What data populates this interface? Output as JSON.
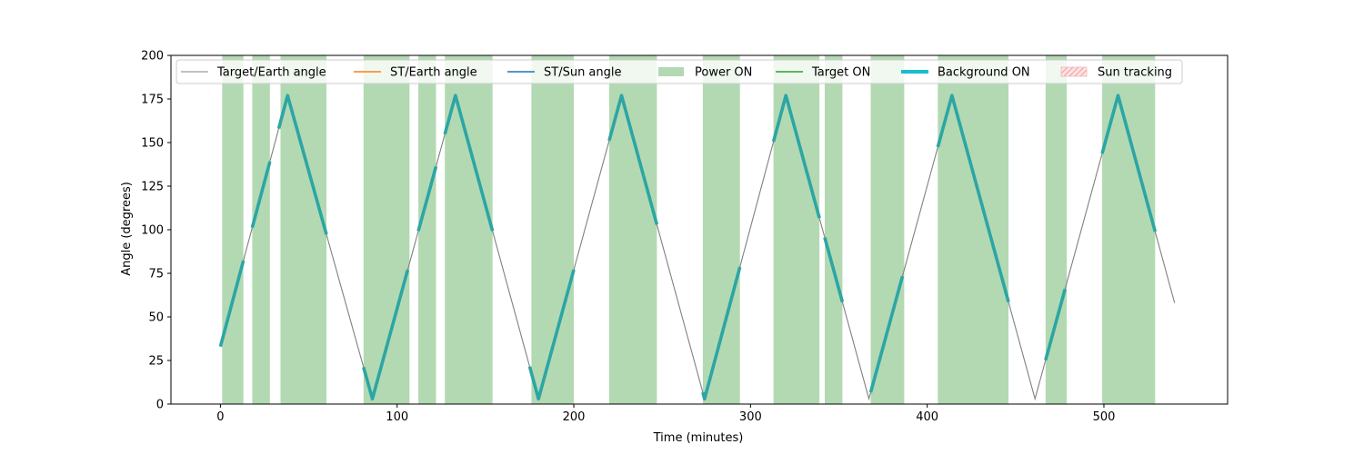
{
  "chart_data": {
    "type": "line",
    "title": "",
    "xlabel": "Time (minutes)",
    "ylabel": "Angle (degrees)",
    "xlim": [
      -28,
      570
    ],
    "ylim": [
      0,
      200
    ],
    "x_ticks": [
      0,
      100,
      200,
      300,
      400,
      500
    ],
    "y_ticks": [
      0,
      25,
      50,
      75,
      100,
      125,
      150,
      175,
      200
    ],
    "grid": false,
    "legend_position": "top",
    "legend": [
      {
        "label": "Target/Earth angle",
        "kind": "line",
        "color": "#808080"
      },
      {
        "label": "ST/Earth angle",
        "kind": "line",
        "color": "#ff7f0e"
      },
      {
        "label": "ST/Sun angle",
        "kind": "line",
        "color": "#1f77b4"
      },
      {
        "label": "Power ON",
        "kind": "patch",
        "color": "#b3d9b3"
      },
      {
        "label": "Target ON",
        "kind": "line",
        "color": "#2ca02c"
      },
      {
        "label": "Background ON",
        "kind": "thickline",
        "color": "#17becf"
      },
      {
        "label": "Sun tracking",
        "kind": "hatch",
        "color": "#f4b6b6"
      }
    ],
    "colors": {
      "target_earth": "#808080",
      "background_on": "#2ca6a4",
      "power_on": "#b3d9b3"
    },
    "series": [
      {
        "name": "Target/Earth angle",
        "points": [
          [
            0,
            33
          ],
          [
            38,
            177
          ],
          [
            86,
            3
          ],
          [
            133,
            177
          ],
          [
            180,
            3
          ],
          [
            227,
            177
          ],
          [
            274,
            3
          ],
          [
            320,
            177
          ],
          [
            367,
            3
          ],
          [
            414,
            177
          ],
          [
            461,
            3
          ],
          [
            508,
            177
          ],
          [
            540,
            58
          ]
        ]
      }
    ],
    "background_on_x": [
      [
        0,
        13
      ],
      [
        18,
        28
      ],
      [
        33,
        60
      ],
      [
        81,
        106
      ],
      [
        112,
        122
      ],
      [
        127,
        154
      ],
      [
        175,
        200
      ],
      [
        220,
        247
      ],
      [
        273,
        294
      ],
      [
        313,
        339
      ],
      [
        342,
        352
      ],
      [
        368,
        386
      ],
      [
        406,
        446
      ],
      [
        467,
        478
      ],
      [
        499,
        529
      ]
    ],
    "power_on": [
      [
        1,
        13
      ],
      [
        18,
        28
      ],
      [
        34,
        60
      ],
      [
        81,
        107
      ],
      [
        112,
        122
      ],
      [
        127,
        154
      ],
      [
        176,
        200
      ],
      [
        220,
        247
      ],
      [
        273,
        294
      ],
      [
        313,
        339
      ],
      [
        342,
        352
      ],
      [
        368,
        387
      ],
      [
        406,
        446
      ],
      [
        467,
        479
      ],
      [
        499,
        529
      ]
    ]
  }
}
